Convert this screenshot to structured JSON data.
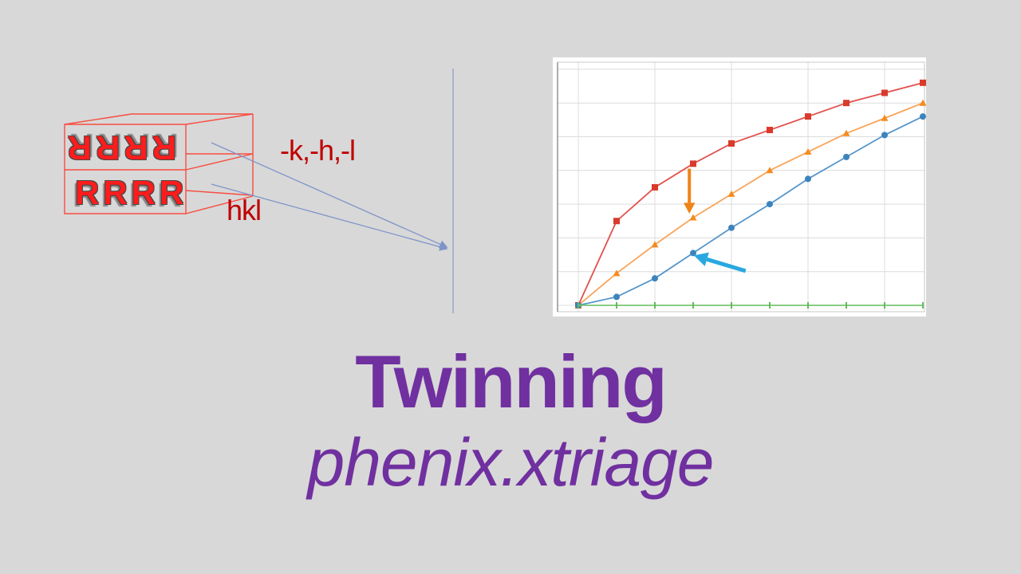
{
  "slide": {
    "background_color": "#d8d8d8",
    "title": "Twinning",
    "subtitle": "phenix.xtriage",
    "title_color": "#7030a0"
  },
  "diagram": {
    "top_row_text": "RRRR",
    "bottom_row_text": "RRRR",
    "upper_label": "-k,-h,-l",
    "lower_label": "hkl",
    "letters_color": "#ff1c1c",
    "box_color": "#f94c40",
    "labels_color": "#c00000",
    "connector_color": "#7e95c9",
    "vertical_line_color": "#a9b3cd"
  },
  "chart_data": {
    "type": "line",
    "x": [
      0,
      0.1,
      0.2,
      0.3,
      0.4,
      0.5,
      0.6,
      0.7,
      0.8,
      0.9
    ],
    "series": [
      {
        "name": "red-squares",
        "marker": "square",
        "color": "#e2504c",
        "marker_color": "#d93a2b",
        "values": [
          0,
          0.25,
          0.35,
          0.42,
          0.48,
          0.52,
          0.56,
          0.6,
          0.63,
          0.66
        ]
      },
      {
        "name": "orange-triangles",
        "marker": "triangle",
        "color": "#f9a55a",
        "marker_color": "#f68a1f",
        "values": [
          0,
          0.095,
          0.18,
          0.26,
          0.33,
          0.4,
          0.455,
          0.51,
          0.555,
          0.6
        ]
      },
      {
        "name": "blue-circles",
        "marker": "circle",
        "color": "#5596cb",
        "marker_color": "#3d84bd",
        "values": [
          0,
          0.025,
          0.08,
          0.155,
          0.23,
          0.3,
          0.375,
          0.44,
          0.505,
          0.56
        ]
      },
      {
        "name": "green-baseline",
        "marker": "dash",
        "color": "#77c470",
        "marker_color": "#62b95f",
        "values": [
          0,
          0,
          0,
          0,
          0,
          0,
          0,
          0,
          0,
          0
        ]
      }
    ],
    "title": "",
    "xlabel": "",
    "ylabel": "",
    "xlim": [
      -0.05,
      0.93
    ],
    "ylim": [
      0,
      0.74
    ],
    "x_gridline_step": 0.2,
    "y_gridline_step": 0.1,
    "grid": true,
    "legend": false,
    "background": "#ffffff",
    "gridline_color": "#dcdcdc",
    "border_color": "#c9c9c9",
    "axis_color": "#8a8a8a",
    "annotations": [
      {
        "name": "orange-down-arrow",
        "color": "#ef8318",
        "width": 4,
        "from": [
          0.29,
          0.405
        ],
        "to": [
          0.29,
          0.272
        ]
      },
      {
        "name": "blue-left-arrow",
        "color": "#29a8e0",
        "width": 5,
        "from": [
          0.437,
          0.102
        ],
        "to": [
          0.302,
          0.148
        ]
      }
    ]
  }
}
